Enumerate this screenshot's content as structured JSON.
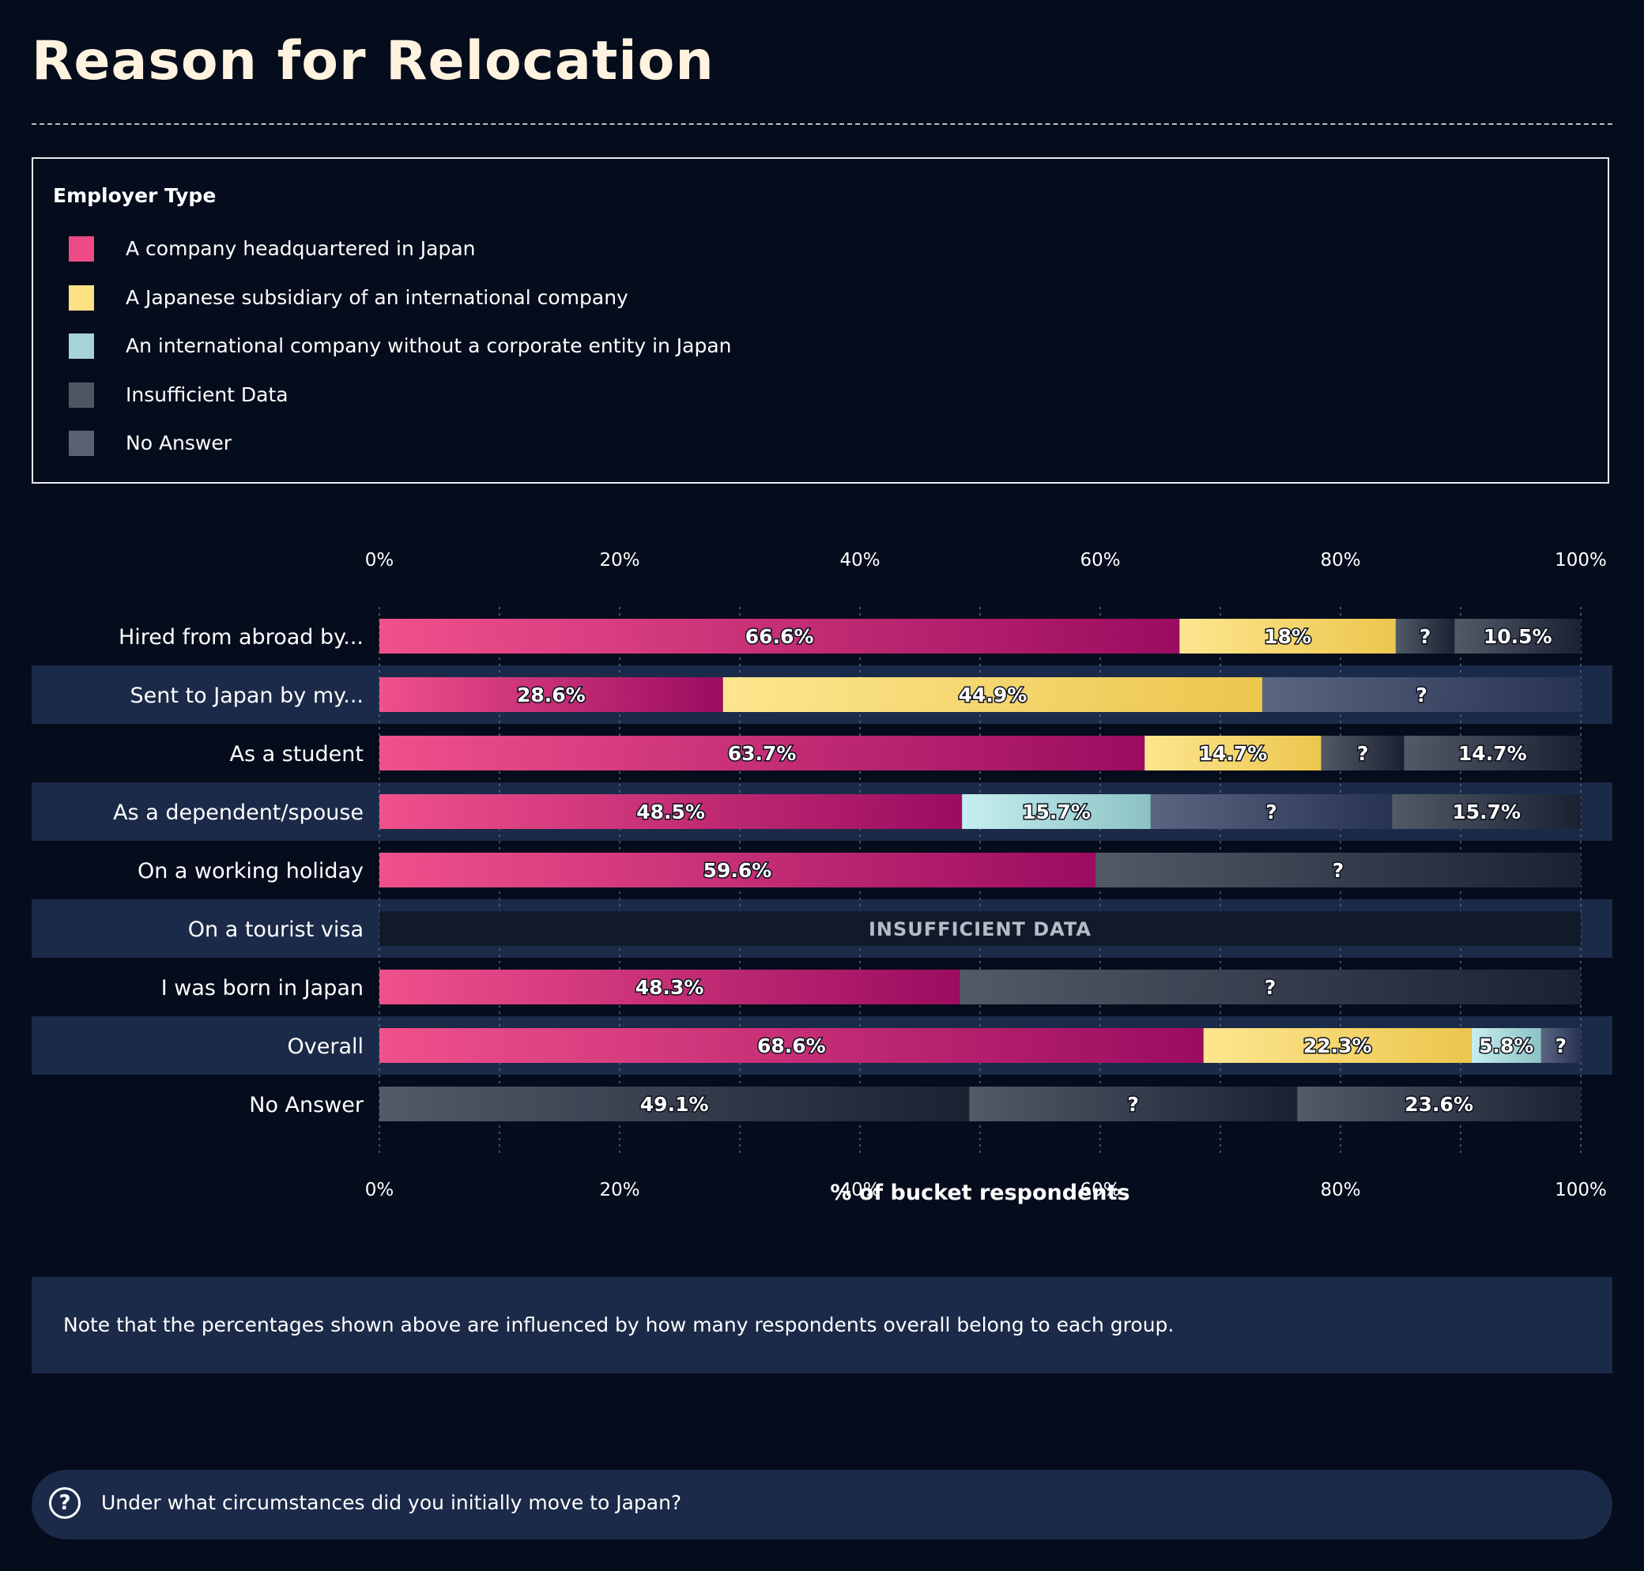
{
  "page": {
    "title": "Reason for Relocation",
    "note": "Note that the percentages shown above are influenced by how many respondents overall belong to each group.",
    "question": "Under what circumstances did you initially move to Japan?"
  },
  "legend": {
    "title": "Employer Type",
    "items": [
      {
        "label": "A company headquartered in Japan",
        "color": "#ee4a86"
      },
      {
        "label": "A Japanese subsidiary of an international company",
        "color": "#fde285"
      },
      {
        "label": "An international company without a corporate entity in Japan",
        "color": "#a6d3d5"
      },
      {
        "label": "Insufficient Data",
        "color": "#4e5563"
      },
      {
        "label": "No Answer",
        "color": "#5a6271"
      }
    ]
  },
  "chart_data": {
    "type": "bar",
    "orientation": "horizontal",
    "stacked": true,
    "xlabel": "% of bucket respondents",
    "xlim": [
      0,
      100
    ],
    "xticks": [
      "0%",
      "20%",
      "40%",
      "60%",
      "80%",
      "100%"
    ],
    "grid": true,
    "categories": [
      "Hired from abroad by...",
      "Sent to Japan by my...",
      "As a student",
      "As a dependent/spouse",
      "On a working holiday",
      "On a tourist visa",
      "I was born in Japan",
      "Overall",
      "No Answer"
    ],
    "bars": [
      {
        "segments": [
          {
            "series": "A company headquartered in Japan",
            "value": 66.6,
            "label": "66.6%"
          },
          {
            "series": "A Japanese subsidiary of an international company",
            "value": 18,
            "label": "18%"
          },
          {
            "series": "Insufficient Data",
            "value": 4.9,
            "label": "?"
          },
          {
            "series": "No Answer",
            "value": 10.5,
            "label": "10.5%"
          }
        ]
      },
      {
        "segments": [
          {
            "series": "A company headquartered in Japan",
            "value": 28.6,
            "label": "28.6%"
          },
          {
            "series": "A Japanese subsidiary of an international company",
            "value": 44.9,
            "label": "44.9%"
          },
          {
            "series": "Insufficient Data",
            "value": 26.5,
            "label": "?"
          }
        ]
      },
      {
        "segments": [
          {
            "series": "A company headquartered in Japan",
            "value": 63.7,
            "label": "63.7%"
          },
          {
            "series": "A Japanese subsidiary of an international company",
            "value": 14.7,
            "label": "14.7%"
          },
          {
            "series": "Insufficient Data",
            "value": 6.9,
            "label": "?"
          },
          {
            "series": "No Answer",
            "value": 14.7,
            "label": "14.7%"
          }
        ]
      },
      {
        "segments": [
          {
            "series": "A company headquartered in Japan",
            "value": 48.5,
            "label": "48.5%"
          },
          {
            "series": "An international company without a corporate entity in Japan",
            "value": 15.7,
            "label": "15.7%"
          },
          {
            "series": "Insufficient Data",
            "value": 20.1,
            "label": "?"
          },
          {
            "series": "No Answer",
            "value": 15.7,
            "label": "15.7%"
          }
        ]
      },
      {
        "segments": [
          {
            "series": "A company headquartered in Japan",
            "value": 59.6,
            "label": "59.6%"
          },
          {
            "series": "Insufficient Data",
            "value": 40.4,
            "label": "?"
          }
        ]
      },
      {
        "insufficient_label": "INSUFFICIENT DATA",
        "segments": []
      },
      {
        "segments": [
          {
            "series": "A company headquartered in Japan",
            "value": 48.3,
            "label": "48.3%"
          },
          {
            "series": "Insufficient Data",
            "value": 51.7,
            "label": "?"
          }
        ]
      },
      {
        "segments": [
          {
            "series": "A company headquartered in Japan",
            "value": 68.6,
            "label": "68.6%"
          },
          {
            "series": "A Japanese subsidiary of an international company",
            "value": 22.3,
            "label": "22.3%"
          },
          {
            "series": "An international company without a corporate entity in Japan",
            "value": 5.8,
            "label": "5.8%"
          },
          {
            "series": "Insufficient Data",
            "value": 3.3,
            "label": "?"
          }
        ]
      },
      {
        "segments": [
          {
            "series": "No Answer",
            "value": 49.1,
            "label": "49.1%"
          },
          {
            "series": "Insufficient Data",
            "value": 27.3,
            "label": "?"
          },
          {
            "series": "No Answer",
            "value": 23.6,
            "label": "23.6%"
          }
        ]
      }
    ]
  }
}
